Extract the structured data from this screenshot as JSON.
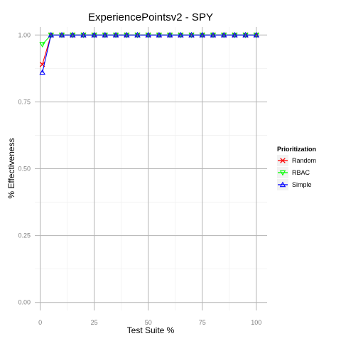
{
  "chart_data": {
    "type": "line",
    "title": "ExperiencePointsv2 - SPY",
    "xlabel": "Test Suite %",
    "ylabel": "% Effectiveness",
    "xlim": [
      -2.5,
      105
    ],
    "ylim": [
      -0.03,
      1.03
    ],
    "x_ticks": [
      0,
      25,
      50,
      75,
      100
    ],
    "x_tick_labels": [
      "0",
      "25",
      "50",
      "75",
      "100"
    ],
    "y_ticks": [
      0,
      0.25,
      0.5,
      0.75,
      1
    ],
    "y_tick_labels": [
      "0.00",
      "0.25",
      "0.50",
      "0.75",
      "1.00"
    ],
    "grid": true,
    "legend": {
      "title": "Prioritization",
      "placement": "right"
    },
    "x": [
      1,
      5,
      10,
      15,
      20,
      25,
      30,
      35,
      40,
      45,
      50,
      55,
      60,
      65,
      70,
      75,
      80,
      85,
      90,
      95,
      100
    ],
    "series": [
      {
        "name": "Random",
        "color": "#ff0000",
        "marker": "x",
        "values": [
          0.89,
          1,
          1,
          1,
          1,
          1,
          1,
          1,
          1,
          1,
          1,
          1,
          1,
          1,
          1,
          1,
          1,
          1,
          1,
          1,
          1
        ]
      },
      {
        "name": "RBAC",
        "color": "#00ff00",
        "marker": "triangle-down",
        "values": [
          0.965,
          1,
          1,
          1,
          1,
          1,
          1,
          1,
          1,
          1,
          1,
          1,
          1,
          1,
          1,
          1,
          1,
          1,
          1,
          1,
          1
        ]
      },
      {
        "name": "Simple",
        "color": "#0000ff",
        "marker": "triangle-up",
        "values": [
          0.86,
          1,
          1,
          1,
          1,
          1,
          1,
          1,
          1,
          1,
          1,
          1,
          1,
          1,
          1,
          1,
          1,
          1,
          1,
          1,
          1
        ]
      }
    ]
  }
}
